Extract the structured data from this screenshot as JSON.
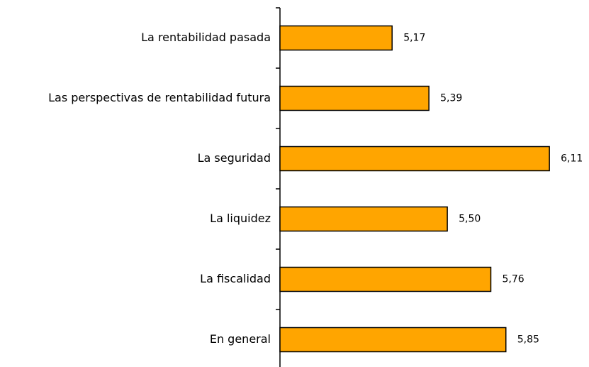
{
  "chart_data": {
    "type": "barh",
    "categories": [
      "La rentabilidad pasada",
      "Las perspectivas de rentabilidad futura",
      "La seguridad",
      "La liquidez",
      "La fiscalidad",
      "En general"
    ],
    "values": [
      5.17,
      5.39,
      6.11,
      5.5,
      5.76,
      5.85
    ],
    "value_labels": [
      "5,17",
      "5,39",
      "6,11",
      "5,50",
      "5,76",
      "5,85"
    ],
    "color": "#ffa500",
    "xlim": [
      4.5,
      6.3
    ]
  }
}
